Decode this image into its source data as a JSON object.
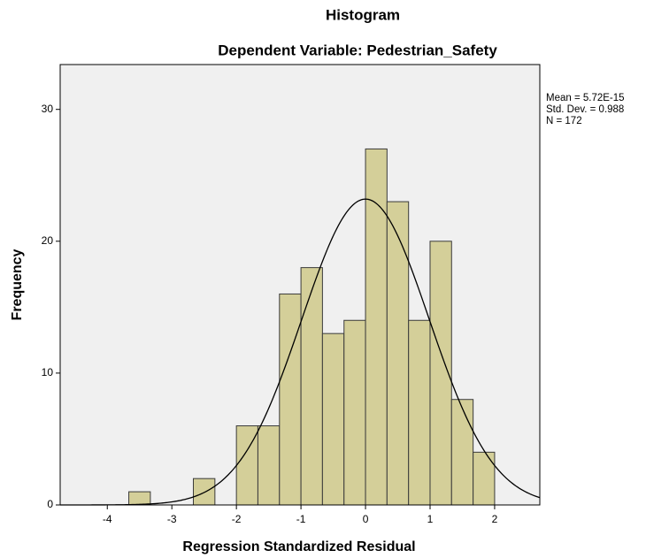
{
  "chart_data": {
    "type": "histogram",
    "title": "Histogram",
    "subtitle": "Dependent Variable: Pedestrian_Safety",
    "x_label": "Regression Standardized Residual",
    "y_label": "Frequency",
    "bins": [
      -3.667,
      -3.333,
      -3,
      -2.667,
      -2.333,
      -2,
      -1.667,
      -1.333,
      -1,
      -0.667,
      -0.333,
      0,
      0.333,
      0.667,
      1,
      1.333,
      1.667,
      2
    ],
    "counts": [
      1,
      0,
      0,
      2,
      0,
      6,
      6,
      16,
      18,
      13,
      14,
      27,
      23,
      14,
      20,
      8,
      4
    ],
    "color": "#d4cf99",
    "xlim": [
      -4.73,
      2.7
    ],
    "ylim": [
      0,
      33.4
    ],
    "xticks": [
      -4,
      -3,
      -2,
      -1,
      0,
      1,
      2
    ],
    "yticks": [
      0,
      10,
      20,
      30
    ],
    "normal_curve": {
      "mean": 5.72e-15,
      "std_dev": 0.988,
      "n": 172
    },
    "stats_text": [
      "Mean = 5.72E-15",
      "Std. Dev. = 0.988",
      "N = 172"
    ]
  }
}
